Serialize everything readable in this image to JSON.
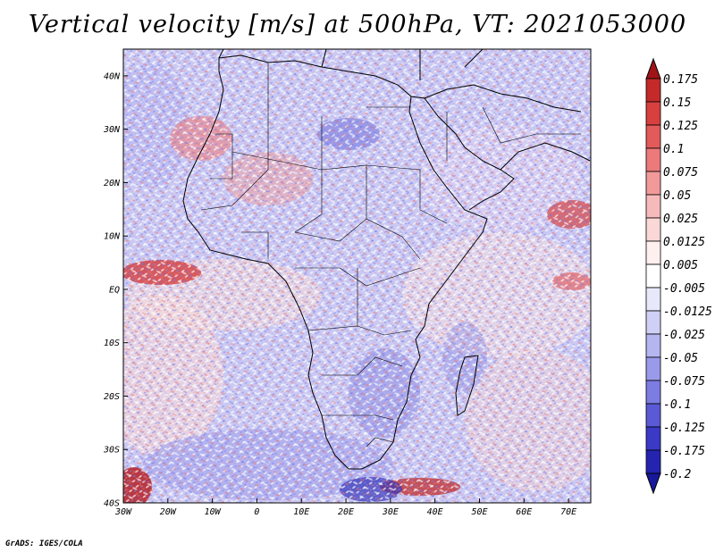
{
  "title": "Vertical velocity [m/s] at 500hPa, VT: 2021053000",
  "footer": "GrADS: IGES/COLA",
  "map": {
    "region": "Africa",
    "lon_range": [
      -30,
      75
    ],
    "lat_range": [
      -40,
      45
    ],
    "lon_ticks": [
      "30W",
      "20W",
      "10W",
      "0",
      "10E",
      "20E",
      "30E",
      "40E",
      "50E",
      "60E",
      "70E"
    ],
    "lat_ticks": [
      "40N",
      "30N",
      "20N",
      "10N",
      "EQ",
      "10S",
      "20S",
      "30S",
      "40S"
    ]
  },
  "colorbar": {
    "labels": [
      "0.175",
      "0.15",
      "0.125",
      "0.1",
      "0.075",
      "0.05",
      "0.025",
      "0.0125",
      "0.005",
      "-0.005",
      "-0.0125",
      "-0.025",
      "-0.05",
      "-0.075",
      "-0.1",
      "-0.125",
      "-0.175",
      "-0.2"
    ],
    "colors": [
      "#a01418",
      "#c42a2a",
      "#d84040",
      "#e25a5a",
      "#ec7a7a",
      "#f29a9a",
      "#f7baba",
      "#fbd8d8",
      "#fff0f0",
      "#ffffff",
      "#e8e8fb",
      "#d0d0f6",
      "#b5b5f0",
      "#9a9aea",
      "#7c7ce2",
      "#5a5ad6",
      "#3a3ac6",
      "#2424b0",
      "#18189a"
    ]
  },
  "colors": {
    "positive": "#e86060",
    "negative": "#7676e6",
    "border": "#000000"
  }
}
